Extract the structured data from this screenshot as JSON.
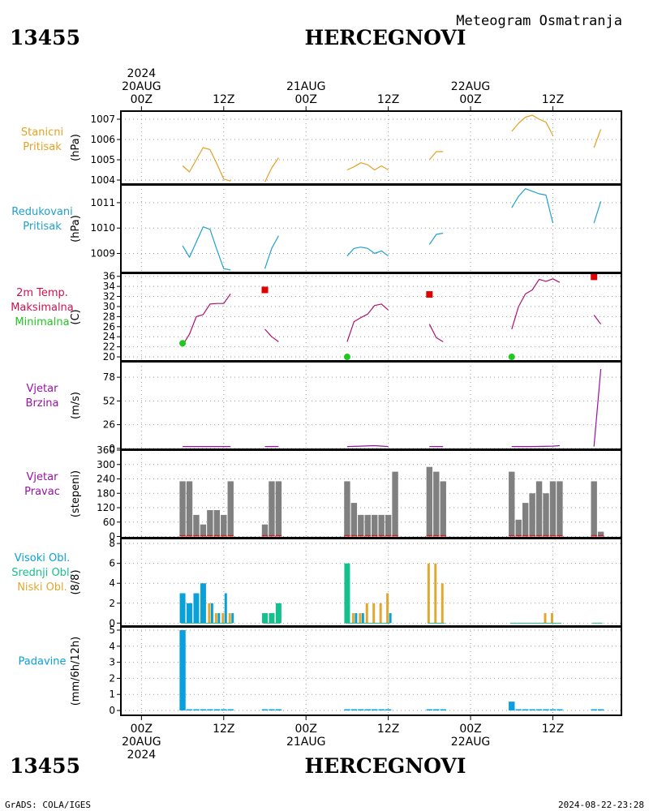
{
  "station_id": "13455",
  "station_name": "HERCEGNOVI",
  "subtitle": "Meteogram Osmatranja",
  "footer_left": "GrADS: COLA/IGES",
  "footer_right": "2024-08-22-23:28",
  "time_axis": {
    "year": "2024",
    "top_labels": [
      {
        "t": 0,
        "lines": [
          "2024",
          "20AUG",
          "00Z"
        ]
      },
      {
        "t": 12,
        "lines": [
          "12Z"
        ]
      },
      {
        "t": 24,
        "lines": [
          "21AUG",
          "00Z"
        ]
      },
      {
        "t": 36,
        "lines": [
          "12Z"
        ]
      },
      {
        "t": 48,
        "lines": [
          "22AUG",
          "00Z"
        ]
      },
      {
        "t": 60,
        "lines": [
          "12Z"
        ]
      }
    ],
    "bottom_labels": [
      {
        "t": 0,
        "lines": [
          "00Z",
          "20AUG",
          "2024"
        ]
      },
      {
        "t": 12,
        "lines": [
          "12Z"
        ]
      },
      {
        "t": 24,
        "lines": [
          "00Z",
          "21AUG"
        ]
      },
      {
        "t": 36,
        "lines": [
          "12Z"
        ]
      },
      {
        "t": 48,
        "lines": [
          "00Z",
          "22AUG"
        ]
      },
      {
        "t": 60,
        "lines": [
          "12Z"
        ]
      }
    ],
    "range_hours": [
      -3,
      70
    ]
  },
  "colors": {
    "pressure_station": "#e6a020",
    "pressure_reduced": "#1ea0d2",
    "temperature_line": "#b0106e",
    "tmax_marker": "#e00000",
    "tmin_marker": "#1ec81e",
    "wind_speed": "#9a10a8",
    "wind_dir_bar": "#808080",
    "wind_dir_base": "#d02020",
    "cloud_high": "#0aa0d8",
    "cloud_mid": "#14c08c",
    "cloud_low": "#e0a830",
    "precip": "#0aa0e0",
    "grid": "#999999",
    "panel_label_text": "#000000"
  },
  "panels": [
    {
      "id": "station_pressure",
      "label_lines": [
        {
          "text": "Stanicni",
          "color": "#e6a020"
        },
        {
          "text": "Pritisak",
          "color": "#e6a020"
        }
      ],
      "unit": "(hPa)",
      "ylim": [
        1003.8,
        1007.4
      ],
      "ticks": [
        1004,
        1005,
        1006,
        1007
      ]
    },
    {
      "id": "reduced_pressure",
      "label_lines": [
        {
          "text": "Redukovani",
          "color": "#1ea0d2"
        },
        {
          "text": "Pritisak",
          "color": "#1ea0d2"
        }
      ],
      "unit": "(hPa)",
      "ylim": [
        1008.25,
        1011.7
      ],
      "ticks": [
        1009,
        1010,
        1011
      ]
    },
    {
      "id": "temperature",
      "label_lines": [
        {
          "text": "2m Temp.",
          "color": "#d0104c"
        },
        {
          "text": "Maksimalna",
          "color": "#d0104c"
        },
        {
          "text": "Minimalna",
          "color": "#1ec81e"
        }
      ],
      "unit": "(C)",
      "ylim": [
        19.2,
        36.6
      ],
      "ticks": [
        20,
        22,
        24,
        26,
        28,
        30,
        32,
        34,
        36
      ]
    },
    {
      "id": "wind_speed",
      "label_lines": [
        {
          "text": "Vjetar",
          "color": "#9a10a8"
        },
        {
          "text": "Brzina",
          "color": "#9a10a8"
        }
      ],
      "unit": "(m/s)",
      "ylim": [
        -1,
        95
      ],
      "ticks": [
        0,
        26,
        52,
        78
      ]
    },
    {
      "id": "wind_direction",
      "label_lines": [
        {
          "text": "Vjetar",
          "color": "#9a10a8"
        },
        {
          "text": "Pravac",
          "color": "#9a10a8"
        }
      ],
      "unit": "(stepeni)",
      "ylim": [
        -5,
        360
      ],
      "ticks": [
        0,
        60,
        120,
        180,
        240,
        300,
        360
      ]
    },
    {
      "id": "clouds",
      "label_lines": [
        {
          "text": "Visoki Obl.",
          "color": "#0aa0d8"
        },
        {
          "text": "Srednji Obl.",
          "color": "#14c08c"
        },
        {
          "text": "Niski Obl.",
          "color": "#e0a830"
        }
      ],
      "unit": "(8/8)",
      "ylim": [
        -0.3,
        8.5
      ],
      "ticks": [
        0,
        2,
        4,
        6,
        8
      ]
    },
    {
      "id": "precipitation",
      "label_lines": [
        {
          "text": "Padavine",
          "color": "#0aa0d8"
        }
      ],
      "unit": "(mm/6h/12h)",
      "ylim": [
        -0.3,
        5.2
      ],
      "ticks": [
        0,
        1,
        2,
        3,
        4,
        5
      ]
    }
  ],
  "chart_data": {
    "type": "line",
    "title": "Meteogram Osmatranja",
    "x_unit": "hours since 20AUG2024 00Z",
    "station_pressure": {
      "segments": [
        {
          "x": [
            6,
            7,
            9,
            10,
            11,
            12,
            13
          ],
          "y": [
            1004.7,
            1004.4,
            1005.6,
            1005.5,
            1004.8,
            1004.05,
            1003.95
          ]
        },
        {
          "x": [
            18,
            19,
            20
          ],
          "y": [
            1003.9,
            1004.6,
            1005.1
          ]
        },
        {
          "x": [
            30,
            31,
            32,
            33,
            34,
            35,
            36
          ],
          "y": [
            1004.5,
            1004.65,
            1004.85,
            1004.75,
            1004.5,
            1004.7,
            1004.5
          ]
        },
        {
          "x": [
            42,
            43,
            44
          ],
          "y": [
            1005.0,
            1005.4,
            1005.4
          ]
        },
        {
          "x": [
            54,
            55,
            56,
            57,
            58,
            59,
            60
          ],
          "y": [
            1006.4,
            1006.8,
            1007.1,
            1007.2,
            1007.0,
            1006.85,
            1006.2
          ]
        },
        {
          "x": [
            66,
            67
          ],
          "y": [
            1005.6,
            1006.5
          ]
        }
      ]
    },
    "reduced_pressure": {
      "segments": [
        {
          "x": [
            6,
            7,
            9,
            10,
            11,
            12,
            13
          ],
          "y": [
            1009.3,
            1008.85,
            1010.05,
            1009.95,
            1009.15,
            1008.4,
            1008.35
          ]
        },
        {
          "x": [
            18,
            19,
            20
          ],
          "y": [
            1008.4,
            1009.2,
            1009.7
          ]
        },
        {
          "x": [
            30,
            31,
            32,
            33,
            34,
            35,
            36
          ],
          "y": [
            1008.9,
            1009.2,
            1009.25,
            1009.2,
            1009.0,
            1009.1,
            1008.9
          ]
        },
        {
          "x": [
            42,
            43,
            44
          ],
          "y": [
            1009.35,
            1009.75,
            1009.8
          ]
        },
        {
          "x": [
            54,
            55,
            56,
            57,
            58,
            59,
            60
          ],
          "y": [
            1010.8,
            1011.25,
            1011.55,
            1011.45,
            1011.35,
            1011.3,
            1010.2
          ]
        },
        {
          "x": [
            66,
            67
          ],
          "y": [
            1010.2,
            1011.05
          ]
        }
      ]
    },
    "temperature": {
      "segments": [
        {
          "x": [
            6,
            7,
            8,
            9,
            10,
            11,
            12,
            13
          ],
          "y": [
            22.3,
            24.5,
            28.0,
            28.4,
            30.5,
            30.6,
            30.6,
            32.5
          ]
        },
        {
          "x": [
            18,
            19,
            20
          ],
          "y": [
            25.5,
            24.0,
            23.0
          ]
        },
        {
          "x": [
            30,
            31,
            32,
            33,
            34,
            35,
            36
          ],
          "y": [
            23.0,
            27.0,
            27.8,
            28.5,
            30.2,
            30.5,
            29.3
          ]
        },
        {
          "x": [
            42,
            43,
            44
          ],
          "y": [
            26.5,
            23.8,
            23.0
          ]
        },
        {
          "x": [
            54,
            55,
            56,
            57,
            58,
            59,
            60,
            61
          ],
          "y": [
            25.5,
            30.0,
            32.5,
            33.3,
            35.4,
            35.0,
            35.5,
            34.8
          ]
        },
        {
          "x": [
            66,
            67
          ],
          "y": [
            28.3,
            26.5
          ]
        }
      ],
      "tmax": [
        {
          "x": 18,
          "y": 33.3
        },
        {
          "x": 42,
          "y": 32.4
        },
        {
          "x": 66,
          "y": 35.9
        }
      ],
      "tmin": [
        {
          "x": 6,
          "y": 22.7
        },
        {
          "x": 30,
          "y": 20.0
        },
        {
          "x": 54,
          "y": 20.0
        }
      ]
    },
    "wind_speed": {
      "segments": [
        {
          "x": [
            6,
            9,
            13
          ],
          "y": [
            2,
            2,
            2
          ]
        },
        {
          "x": [
            18,
            20
          ],
          "y": [
            2,
            2
          ]
        },
        {
          "x": [
            30,
            32,
            34,
            36
          ],
          "y": [
            2,
            2.5,
            3,
            2
          ]
        },
        {
          "x": [
            42,
            44
          ],
          "y": [
            2,
            2
          ]
        },
        {
          "x": [
            54,
            57,
            60,
            61
          ],
          "y": [
            2,
            2,
            2.5,
            3
          ]
        },
        {
          "x": [
            66,
            67
          ],
          "y": [
            2,
            87
          ]
        }
      ]
    },
    "wind_direction": {
      "x": [
        6,
        7,
        8,
        9,
        10,
        11,
        12,
        13,
        18,
        19,
        20,
        30,
        31,
        32,
        33,
        34,
        35,
        36,
        37,
        42,
        43,
        44,
        54,
        55,
        56,
        57,
        58,
        59,
        60,
        61,
        66,
        67
      ],
      "y": [
        230,
        230,
        90,
        50,
        110,
        110,
        90,
        230,
        50,
        230,
        230,
        230,
        140,
        90,
        90,
        90,
        90,
        90,
        270,
        290,
        270,
        230,
        270,
        70,
        140,
        180,
        230,
        180,
        230,
        230,
        230,
        20
      ]
    },
    "clouds": {
      "high": {
        "x": [
          6,
          7,
          8,
          9
        ],
        "y": [
          3,
          2,
          3,
          4
        ]
      },
      "mid": {
        "x": [
          18,
          19,
          20,
          30
        ],
        "y": [
          1,
          1,
          2,
          6
        ]
      },
      "low": {
        "x": [
          10,
          11,
          12,
          13,
          31,
          32,
          33,
          34,
          35,
          36,
          42,
          43,
          44,
          59,
          60
        ],
        "y": [
          2,
          1,
          1,
          1,
          1,
          1,
          2,
          2,
          2,
          3,
          6,
          6,
          4,
          1,
          1
        ]
      },
      "low_dual": {
        "x": [
          10,
          11,
          12,
          13,
          31,
          32,
          36
        ],
        "y": [
          2,
          1,
          3,
          1,
          1,
          1,
          1
        ]
      }
    },
    "precipitation": {
      "x": [
        6,
        7,
        8,
        9,
        10,
        11,
        12,
        13,
        18,
        19,
        20,
        30,
        31,
        32,
        33,
        34,
        35,
        36,
        42,
        43,
        44,
        54,
        55,
        56,
        57,
        58,
        59,
        60,
        61,
        66,
        67
      ],
      "y": [
        5.0,
        0.05,
        0.05,
        0.05,
        0.05,
        0.05,
        0.05,
        0.05,
        0.05,
        0.05,
        0.05,
        0.05,
        0.05,
        0.05,
        0.05,
        0.05,
        0.05,
        0.05,
        0.05,
        0.05,
        0.05,
        0.55,
        0.05,
        0.05,
        0.05,
        0.05,
        0.05,
        0.05,
        0.05,
        0.05,
        0.05
      ]
    }
  }
}
